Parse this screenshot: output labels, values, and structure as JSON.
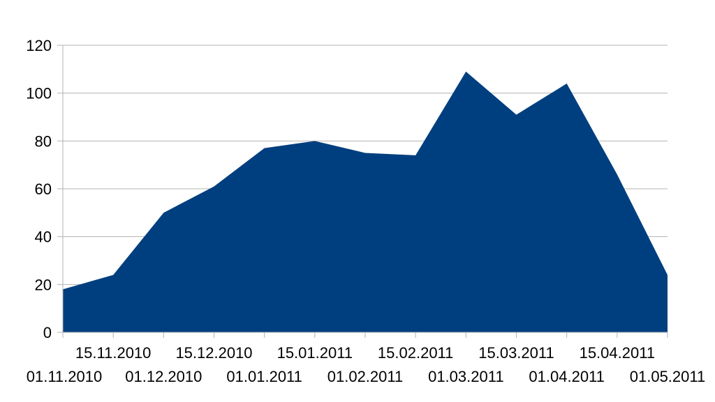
{
  "chart_data": {
    "type": "area",
    "title": "",
    "xlabel": "",
    "ylabel": "",
    "ylim": [
      0,
      120
    ],
    "yticks": [
      0,
      20,
      40,
      60,
      80,
      100,
      120
    ],
    "grid": true,
    "legend": "none",
    "colors": {
      "area": "#003f7f",
      "grid": "#b3b3b3",
      "axis": "#b3b3b3"
    },
    "x_categories": [
      "01.11.2010",
      "15.11.2010",
      "01.12.2010",
      "15.12.2010",
      "01.01.2011",
      "15.01.2011",
      "01.02.2011",
      "15.02.2011",
      "01.03.2011",
      "15.03.2011",
      "01.04.2011",
      "15.04.2011",
      "01.05.2011"
    ],
    "series": [
      {
        "values": [
          18,
          24,
          50,
          61,
          77,
          80,
          75,
          74,
          109,
          91,
          104,
          66,
          24
        ]
      }
    ]
  }
}
